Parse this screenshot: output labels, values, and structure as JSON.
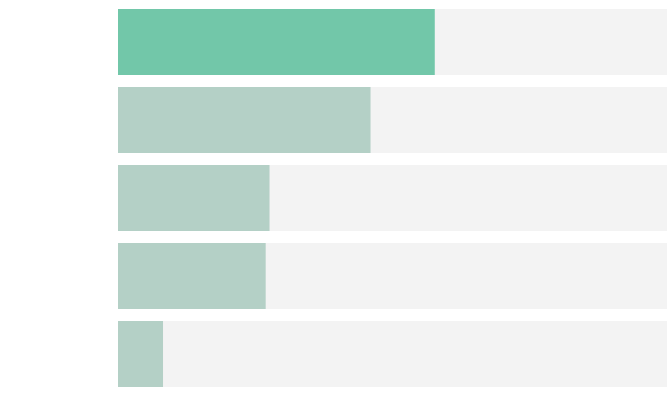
{
  "chart_data": {
    "type": "bar",
    "orientation": "horizontal",
    "categories": [
      "",
      "",
      "",
      "",
      ""
    ],
    "values": [
      57.7,
      46.0,
      27.6,
      26.9,
      8.2
    ],
    "xlim": [
      0,
      100
    ],
    "grid": false,
    "legend": "none",
    "highlight_index": 0,
    "colors": {
      "highlight": "#72c7a9",
      "bar": "#b4d0c6",
      "track": "#f3f3f3"
    }
  }
}
